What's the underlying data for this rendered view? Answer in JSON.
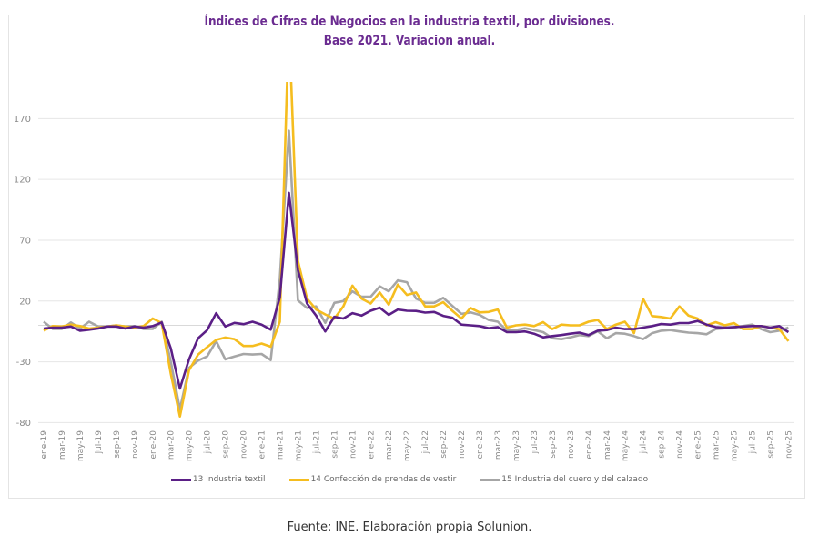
{
  "chart_data": {
    "type": "line",
    "title": "Índices de Cifras de Negocios en la industria textil, por divisiones.",
    "subtitle": "Base 2021. Variacion anual.",
    "xlabel": "",
    "ylabel": "",
    "ylim": [
      -80,
      200
    ],
    "yticks": [
      170,
      120,
      70,
      20,
      -30,
      -80
    ],
    "ytick_labels": [
      "170",
      "120",
      "70",
      "20",
      "-30",
      "-80"
    ],
    "grid": true,
    "legend_position": "bottom",
    "x_tick_labels": [
      "ene-19",
      "mar-19",
      "may-19",
      "jul-19",
      "sep-19",
      "nov-19",
      "ene-20",
      "mar-20",
      "may-20",
      "jul-20",
      "sep-20",
      "nov-20",
      "ene-21",
      "mar-21",
      "may-21",
      "jul-21",
      "sep-21",
      "nov-21",
      "ene-22",
      "mar-22",
      "may-22",
      "jul-22",
      "sep-22",
      "nov-22",
      "ene-23",
      "mar-23",
      "may-23",
      "jul-23",
      "sep-23",
      "nov-23",
      "ene-24",
      "mar-24",
      "may-24",
      "jul-24",
      "sep-24",
      "nov-24",
      "ene-25",
      "mar-25",
      "may-25",
      "jul-25",
      "sep-25",
      "nov-25"
    ],
    "x_start": "ene-19",
    "x_end": "nov-25",
    "x_frequency": "monthly",
    "series": [
      {
        "name": "13 Industria textil",
        "color": "#5b1f86",
        "values": [
          -2.6,
          -1.9,
          -1.9,
          -1,
          -4.4,
          -3.6,
          -2.6,
          -1,
          -1,
          -2.6,
          -1,
          -1.9,
          -0.6,
          2.4,
          -19,
          -52,
          -28,
          -10.6,
          -4,
          10,
          -1,
          2,
          1,
          3,
          0.6,
          -3.6,
          23,
          109,
          45.5,
          18,
          8,
          -5,
          7,
          5.6,
          10,
          8,
          12,
          14.5,
          8.6,
          13,
          12,
          11.8,
          10.5,
          11,
          7.8,
          6.3,
          0.6,
          0,
          -0.6,
          -2.4,
          -1.4,
          -5.6,
          -5.6,
          -5,
          -6.9,
          -9.9,
          -8.8,
          -8,
          -6.9,
          -6,
          -8,
          -4.4,
          -3.9,
          -1.9,
          -3.1,
          -3.1,
          -1.9,
          -0.6,
          1.1,
          0.6,
          1.9,
          1.9,
          3.6,
          0.6,
          -1.4,
          -1.9,
          -1.4,
          -1,
          -0.6,
          -0.6,
          -1.9,
          -0.6,
          -5.6
        ]
      },
      {
        "name": "14 Confección de prendas de vestir",
        "color": "#f5bd1f",
        "values": [
          -4.4,
          -0.6,
          -1,
          0.6,
          -0.6,
          -2.6,
          -1.9,
          -1,
          0,
          -1,
          -1.9,
          -0.6,
          5.6,
          1.9,
          -40,
          -75,
          -37,
          -24,
          -18,
          -12,
          -10,
          -11.4,
          -17,
          -17,
          -15,
          -17.6,
          3,
          250,
          53,
          22,
          13,
          9,
          5.5,
          15.6,
          32.6,
          22,
          18,
          27,
          17,
          33.5,
          25,
          27,
          15.6,
          15.6,
          19,
          12,
          5.6,
          14.3,
          10.6,
          11,
          13,
          -1.9,
          0,
          0.6,
          -0.6,
          2.6,
          -3.1,
          0.6,
          0,
          0,
          3,
          4.4,
          -3.1,
          0.6,
          3,
          -6.4,
          21.8,
          7.6,
          6.9,
          5.6,
          15.6,
          8,
          5.6,
          0,
          2.6,
          0,
          1.9,
          -3.1,
          -3.1,
          -0.6,
          -1.9,
          -3.1,
          -13
        ]
      },
      {
        "name": "15 Industria del cuero y del calzado",
        "color": "#a6a6a6",
        "values": [
          3,
          -3,
          -3,
          2.4,
          -2.6,
          3,
          -1,
          -1,
          0,
          -1,
          -0.6,
          -3,
          -3,
          3,
          -30,
          -69,
          -35,
          -29,
          -25.6,
          -13,
          -28,
          -25.6,
          -23.6,
          -24,
          -23.6,
          -28.6,
          38,
          160,
          20.6,
          14.3,
          15.6,
          2,
          18.5,
          20,
          28,
          23.5,
          23.5,
          32,
          28,
          37,
          35.5,
          22,
          18.5,
          18.5,
          22.6,
          16,
          9.4,
          10.6,
          8.6,
          4.4,
          3,
          -4.4,
          -3.9,
          -2.4,
          -3.9,
          -5.6,
          -10.6,
          -11.4,
          -9.9,
          -8,
          -8.8,
          -4.9,
          -10.6,
          -6.4,
          -6.9,
          -8.8,
          -11.4,
          -6.4,
          -4.4,
          -3.9,
          -5,
          -6,
          -6.4,
          -7.3,
          -3.1,
          -2.4,
          -1.9,
          -0.6,
          0.6,
          -3.1,
          -5.6,
          -4.4,
          -1.9
        ]
      }
    ]
  },
  "legend": {
    "items": [
      {
        "label": "13 Industria textil",
        "color": "#5b1f86"
      },
      {
        "label": "14 Confección de prendas de vestir",
        "color": "#f5bd1f"
      },
      {
        "label": "15 Industria del cuero y del calzado",
        "color": "#a6a6a6"
      }
    ]
  },
  "footer": "Fuente: INE. Elaboración propia Solunion."
}
